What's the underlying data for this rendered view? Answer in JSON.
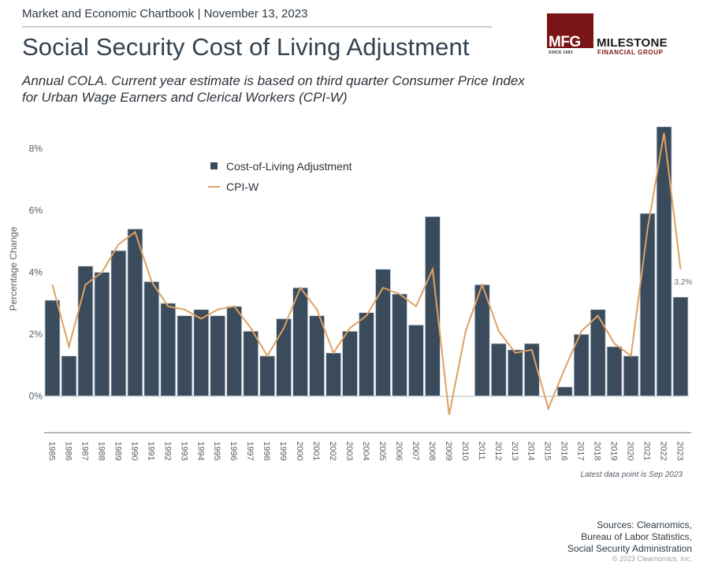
{
  "header": {
    "kicker": "Market and Economic Chartbook | November 13, 2023",
    "title": "Social Security Cost of Living Adjustment",
    "subtitle": "Annual COLA. Current year estimate is based on third quarter Consumer Price Index for Urban Wage Earners and Clerical Workers (CPI-W)"
  },
  "logo": {
    "mark": "MFG",
    "since": "SINCE 1983",
    "name": "MILESTONE",
    "tagline": "FINANCIAL GROUP",
    "brand_color": "#7b1416"
  },
  "footer": {
    "note": "Latest data point is Sep 2023",
    "sources": [
      "Sources: Clearnomics,",
      "Bureau of Labor Statistics,",
      "Social Security Administration"
    ],
    "copyright": "© 2023 Clearnomics, Inc."
  },
  "chart_data": {
    "type": "bar",
    "title": "Social Security Cost of Living Adjustment",
    "xlabel": "",
    "ylabel": "Percentage Change",
    "ylim": [
      -1.2,
      9
    ],
    "yticks": [
      0,
      2,
      4,
      6,
      8
    ],
    "ytick_labels": [
      "0%",
      "2%",
      "4%",
      "6%",
      "8%"
    ],
    "grid": false,
    "legend_position": "top-left",
    "categories": [
      "1985",
      "1986",
      "1987",
      "1988",
      "1989",
      "1990",
      "1991",
      "1992",
      "1993",
      "1994",
      "1995",
      "1996",
      "1997",
      "1998",
      "1999",
      "2000",
      "2001",
      "2002",
      "2003",
      "2004",
      "2005",
      "2006",
      "2007",
      "2008",
      "2009",
      "2010",
      "2011",
      "2012",
      "2013",
      "2014",
      "2015",
      "2016",
      "2017",
      "2018",
      "2019",
      "2020",
      "2021",
      "2022",
      "2023"
    ],
    "series": [
      {
        "name": "Cost-of-Living Adjustment",
        "type": "bar",
        "color": "#3a4c5c",
        "values": [
          3.1,
          1.3,
          4.2,
          4.0,
          4.7,
          5.4,
          3.7,
          3.0,
          2.6,
          2.8,
          2.6,
          2.9,
          2.1,
          1.3,
          2.5,
          3.5,
          2.6,
          1.4,
          2.1,
          2.7,
          4.1,
          3.3,
          2.3,
          5.8,
          0.0,
          0.0,
          3.6,
          1.7,
          1.5,
          1.7,
          0.0,
          0.3,
          2.0,
          2.8,
          1.6,
          1.3,
          5.9,
          8.7,
          3.2
        ]
      },
      {
        "name": "CPI-W",
        "type": "line",
        "color": "#e0a063",
        "values": [
          3.6,
          1.6,
          3.6,
          4.0,
          4.9,
          5.3,
          3.7,
          2.9,
          2.8,
          2.5,
          2.8,
          2.9,
          2.2,
          1.3,
          2.2,
          3.5,
          2.8,
          1.4,
          2.2,
          2.6,
          3.5,
          3.3,
          2.9,
          4.1,
          -0.6,
          2.1,
          3.6,
          2.1,
          1.4,
          1.5,
          -0.4,
          0.9,
          2.1,
          2.6,
          1.7,
          1.3,
          5.4,
          8.5,
          4.1
        ]
      }
    ],
    "annotations": [
      {
        "category": "2023",
        "series": "Cost-of-Living Adjustment",
        "text": "3.2%"
      }
    ]
  }
}
